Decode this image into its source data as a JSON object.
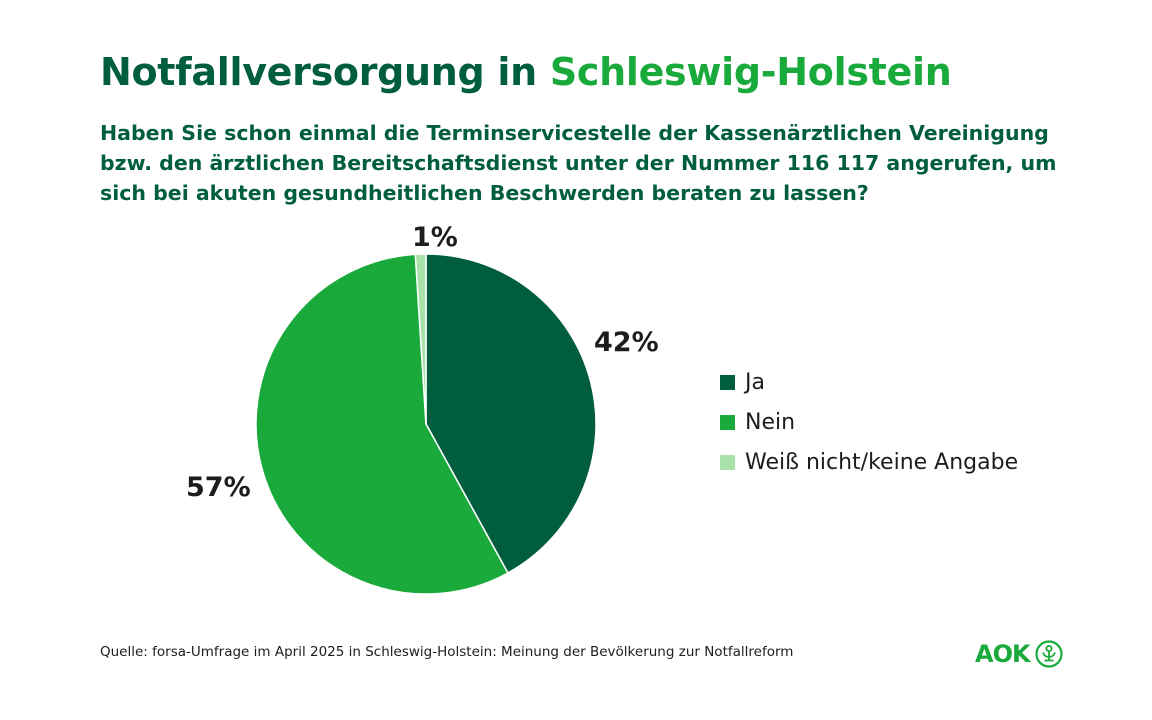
{
  "title": {
    "part1": "Notfallversorgung in",
    "part2": "Schleswig-Holstein"
  },
  "question": {
    "line1": "Haben Sie schon einmal die Terminservicestelle der Kassenärztlichen Vereinigung",
    "line2": "bzw. den ärztlichen Bereitschaftsdienst unter der Nummer 116 117 angerufen, um",
    "line3": "sich bei akuten gesundheitlichen Beschwerden beraten zu lassen?"
  },
  "chart_data": {
    "type": "pie",
    "slices": [
      {
        "label": "Ja",
        "value": 42,
        "value_label": "42%",
        "color": "#005e3f"
      },
      {
        "label": "Nein",
        "value": 57,
        "value_label": "57%",
        "color": "#1aaa3c"
      },
      {
        "label": "Weiß nicht/keine Angabe",
        "value": 1,
        "value_label": "1%",
        "color": "#a8e2a8"
      }
    ],
    "legend_position": "right"
  },
  "source": "Quelle: forsa-Umfrage im April 2025 in Schleswig-Holstein: Meinung der Bevölkerung zur Notfallreform",
  "logo": {
    "text": "AOK",
    "icon": "aok-tree-icon"
  }
}
